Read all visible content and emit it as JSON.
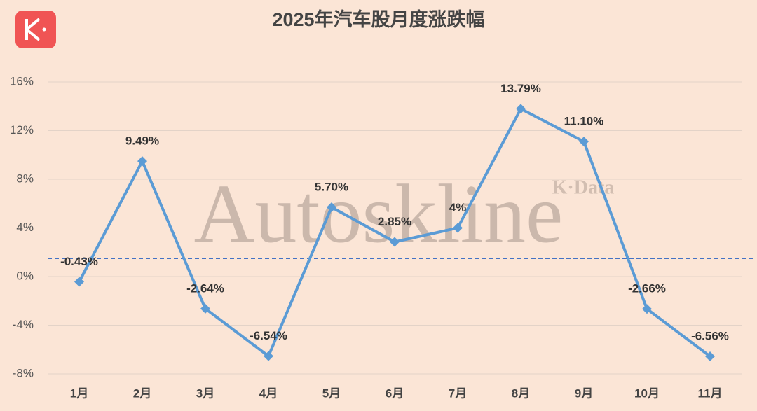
{
  "chart_data": {
    "type": "line",
    "title": "2025年汽车股月度涨跌幅",
    "watermark": "Autoskline",
    "watermark_small": "K·Data",
    "categories": [
      "1月",
      "2月",
      "3月",
      "4月",
      "5月",
      "6月",
      "7月",
      "8月",
      "9月",
      "10月",
      "11月"
    ],
    "values": [
      -0.43,
      9.49,
      -2.64,
      -6.54,
      5.7,
      2.85,
      4,
      13.79,
      11.1,
      -2.66,
      -6.56
    ],
    "value_labels": [
      "-0.43%",
      "9.49%",
      "-2.64%",
      "-6.54%",
      "5.70%",
      "2.85%",
      "4%",
      "13.79%",
      "11.10%",
      "-2.66%",
      "-6.56%"
    ],
    "color": "#5b9bd5",
    "reference_line": 1.5,
    "reference_color": "#4472c4",
    "ylim": [
      -8,
      16
    ],
    "yticks": [
      {
        "value": -8,
        "label": "-8%"
      },
      {
        "value": -4,
        "label": "-4%"
      },
      {
        "value": 0,
        "label": "0%"
      },
      {
        "value": 4,
        "label": "4%"
      },
      {
        "value": 8,
        "label": "8%"
      },
      {
        "value": 12,
        "label": "12%"
      },
      {
        "value": 16,
        "label": "16%"
      }
    ],
    "grid": true
  }
}
